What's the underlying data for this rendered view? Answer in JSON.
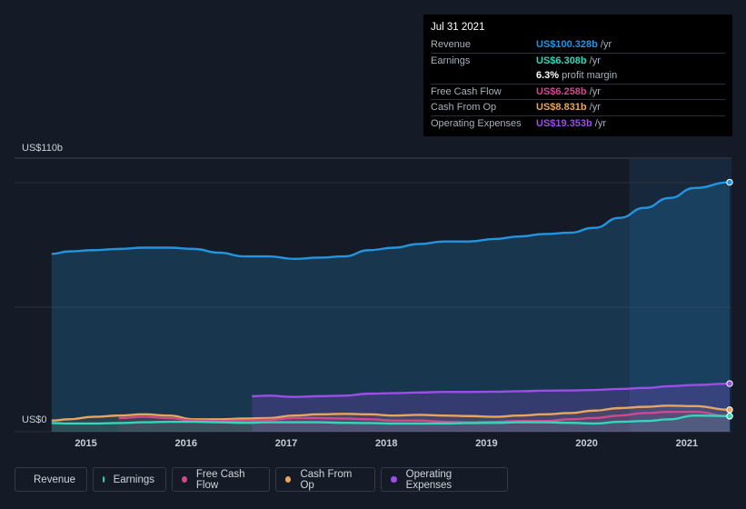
{
  "tooltip": {
    "date": "Jul 31 2021",
    "rows": [
      {
        "label": "Revenue",
        "value": "US$100.328b",
        "unit": "/yr",
        "color": "#2394df"
      },
      {
        "label": "Earnings",
        "value": "US$6.308b",
        "unit": "/yr",
        "color": "#34d6b9"
      },
      {
        "label": "",
        "value": "6.3%",
        "unit": "profit margin",
        "color": "#ffffff"
      },
      {
        "label": "Free Cash Flow",
        "value": "US$6.258b",
        "unit": "/yr",
        "color": "#cf4a8c"
      },
      {
        "label": "Cash From Op",
        "value": "US$8.831b",
        "unit": "/yr",
        "color": "#e7a55d"
      },
      {
        "label": "Operating Expenses",
        "value": "US$19.353b",
        "unit": "/yr",
        "color": "#9b4ee8"
      }
    ]
  },
  "legend": [
    {
      "label": "Revenue",
      "color": "#2394df"
    },
    {
      "label": "Earnings",
      "color": "#34d6b9"
    },
    {
      "label": "Free Cash Flow",
      "color": "#cf4a8c"
    },
    {
      "label": "Cash From Op",
      "color": "#e7a55d"
    },
    {
      "label": "Operating Expenses",
      "color": "#9b4ee8"
    }
  ],
  "chart_data": {
    "type": "area",
    "title": "",
    "y_unit_labels": {
      "top": "US$110b",
      "bottom": "US$0"
    },
    "ylim": [
      0,
      110
    ],
    "xlim": [
      2014.75,
      2021.6
    ],
    "x_ticks": [
      "2015",
      "2016",
      "2017",
      "2018",
      "2019",
      "2020",
      "2021"
    ],
    "highlight_from": 2020.6,
    "series": [
      {
        "name": "Revenue",
        "color": "#2394df",
        "x": [
          2014.83,
          2015.0,
          2015.25,
          2015.5,
          2015.75,
          2016.0,
          2016.25,
          2016.5,
          2016.75,
          2017.0,
          2017.25,
          2017.5,
          2017.75,
          2018.0,
          2018.25,
          2018.5,
          2018.75,
          2019.0,
          2019.25,
          2019.5,
          2019.75,
          2020.0,
          2020.25,
          2020.5,
          2020.75,
          2021.0,
          2021.25,
          2021.6
        ],
        "values": [
          71.5,
          72.5,
          73.0,
          73.5,
          74.0,
          74.0,
          73.5,
          72.0,
          70.5,
          70.5,
          69.5,
          70.0,
          70.5,
          73.0,
          74.0,
          75.5,
          76.5,
          76.5,
          77.5,
          78.5,
          79.5,
          80.0,
          82.0,
          86.0,
          90.0,
          94.0,
          98.0,
          100.3
        ]
      },
      {
        "name": "Operating Expenses",
        "color": "#9b4ee8",
        "x": [
          2016.83,
          2017.0,
          2017.25,
          2017.5,
          2017.75,
          2018.0,
          2018.25,
          2018.5,
          2018.75,
          2019.0,
          2019.25,
          2019.5,
          2019.75,
          2020.0,
          2020.25,
          2020.5,
          2020.75,
          2021.0,
          2021.25,
          2021.6
        ],
        "values": [
          14.3,
          14.5,
          14.0,
          14.3,
          14.5,
          15.3,
          15.5,
          15.8,
          16.0,
          16.0,
          16.1,
          16.3,
          16.5,
          16.6,
          16.8,
          17.2,
          17.6,
          18.3,
          18.8,
          19.35
        ]
      },
      {
        "name": "Cash From Op",
        "color": "#e7a55d",
        "x": [
          2014.83,
          2015.0,
          2015.25,
          2015.5,
          2015.75,
          2016.0,
          2016.25,
          2016.5,
          2016.75,
          2017.0,
          2017.25,
          2017.5,
          2017.75,
          2018.0,
          2018.25,
          2018.5,
          2018.75,
          2019.0,
          2019.25,
          2019.5,
          2019.75,
          2020.0,
          2020.25,
          2020.5,
          2020.75,
          2021.0,
          2021.25,
          2021.6
        ],
        "values": [
          4.5,
          5.0,
          6.0,
          6.5,
          7.0,
          6.5,
          5.0,
          5.0,
          5.3,
          5.5,
          6.5,
          7.0,
          7.2,
          7.0,
          6.5,
          6.8,
          6.5,
          6.3,
          6.0,
          6.5,
          7.0,
          7.5,
          8.5,
          9.5,
          10.0,
          10.5,
          10.3,
          8.83
        ]
      },
      {
        "name": "Free Cash Flow",
        "color": "#cf4a8c",
        "x": [
          2015.5,
          2015.75,
          2016.0,
          2016.25,
          2016.5,
          2016.75,
          2017.0,
          2017.25,
          2017.5,
          2017.75,
          2018.0,
          2018.25,
          2018.5,
          2018.75,
          2019.0,
          2019.25,
          2019.5,
          2019.75,
          2020.0,
          2020.25,
          2020.5,
          2020.75,
          2021.0,
          2021.25,
          2021.6
        ],
        "values": [
          5.5,
          6.0,
          5.5,
          4.5,
          4.3,
          4.5,
          4.8,
          5.5,
          5.5,
          5.3,
          5.0,
          4.5,
          4.5,
          4.0,
          3.8,
          4.0,
          4.3,
          4.3,
          5.0,
          5.5,
          6.5,
          7.5,
          8.0,
          8.0,
          6.26
        ]
      },
      {
        "name": "Earnings",
        "color": "#34d6b9",
        "x": [
          2014.83,
          2015.0,
          2015.25,
          2015.5,
          2015.75,
          2016.0,
          2016.25,
          2016.5,
          2016.75,
          2017.0,
          2017.25,
          2017.5,
          2017.75,
          2018.0,
          2018.25,
          2018.5,
          2018.75,
          2019.0,
          2019.25,
          2019.5,
          2019.75,
          2020.0,
          2020.25,
          2020.5,
          2020.75,
          2021.0,
          2021.25,
          2021.6
        ],
        "values": [
          3.5,
          3.3,
          3.3,
          3.5,
          3.8,
          4.0,
          4.0,
          3.8,
          3.6,
          3.8,
          3.8,
          3.8,
          3.6,
          3.5,
          3.3,
          3.3,
          3.3,
          3.5,
          3.6,
          3.8,
          3.8,
          3.6,
          3.3,
          4.0,
          4.3,
          5.0,
          6.5,
          6.31
        ]
      }
    ]
  }
}
